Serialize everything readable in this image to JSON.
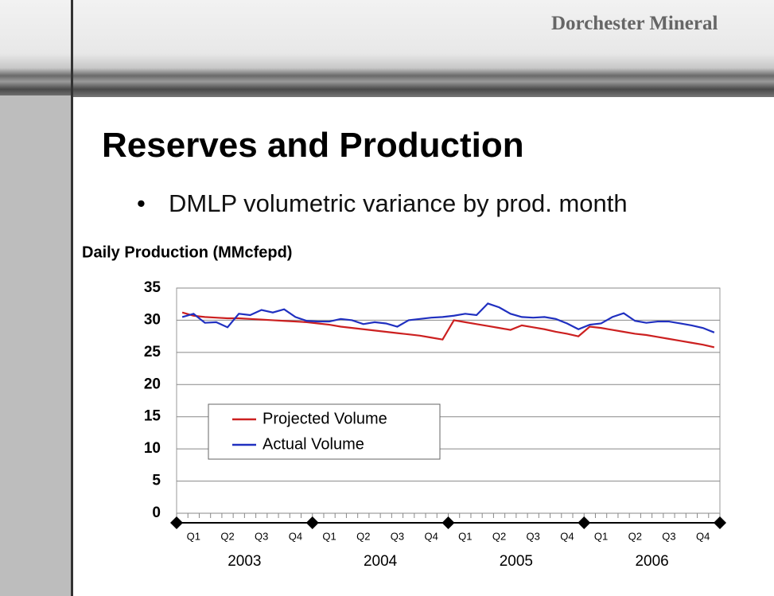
{
  "header": {
    "brand": "Dorchester Mineral"
  },
  "title": "Reserves and Production",
  "bullet": "DMLP volumetric variance by prod. month",
  "chart_data": {
    "type": "line",
    "title": "Daily Production (MMcfepd)",
    "categories": [
      null,
      "Q1",
      null,
      null,
      "Q2",
      null,
      null,
      "Q3",
      null,
      null,
      "Q4",
      null,
      null,
      "Q1",
      null,
      null,
      "Q2",
      null,
      null,
      "Q3",
      null,
      null,
      "Q4",
      null,
      null,
      "Q1",
      null,
      null,
      "Q2",
      null,
      null,
      "Q3",
      null,
      null,
      "Q4",
      null,
      null,
      "Q1",
      null,
      null,
      "Q2",
      null,
      null,
      "Q3",
      null,
      null,
      "Q4",
      null
    ],
    "year_labels": [
      "2003",
      "2004",
      "2005",
      "2006"
    ],
    "series": [
      {
        "name": "Projected Volume",
        "color": "#cc2020",
        "values": [
          31.2,
          30.7,
          30.5,
          30.4,
          30.3,
          30.3,
          30.2,
          30.1,
          30.0,
          29.9,
          29.8,
          29.7,
          29.5,
          29.3,
          29.0,
          28.8,
          28.6,
          28.4,
          28.2,
          28.0,
          27.8,
          27.6,
          27.3,
          27.0,
          30.0,
          29.7,
          29.4,
          29.1,
          28.8,
          28.5,
          29.2,
          28.9,
          28.6,
          28.2,
          27.9,
          27.5,
          29.0,
          28.8,
          28.5,
          28.2,
          27.9,
          27.7,
          27.4,
          27.1,
          26.8,
          26.5,
          26.2,
          25.8
        ]
      },
      {
        "name": "Actual Volume",
        "color": "#2030c0",
        "values": [
          30.5,
          31.0,
          29.6,
          29.7,
          28.9,
          31.0,
          30.8,
          31.6,
          31.2,
          31.7,
          30.5,
          29.9,
          29.8,
          29.8,
          30.2,
          30.0,
          29.4,
          29.7,
          29.5,
          29.0,
          30.0,
          30.2,
          30.4,
          30.5,
          30.7,
          31.0,
          30.8,
          32.6,
          32.0,
          31.0,
          30.5,
          30.4,
          30.5,
          30.2,
          29.5,
          28.6,
          29.3,
          29.5,
          30.5,
          31.1,
          29.9,
          29.6,
          29.8,
          29.8,
          29.5,
          29.2,
          28.8,
          28.1
        ]
      }
    ],
    "ylim": [
      0,
      35
    ],
    "yticks": [
      0,
      5,
      10,
      15,
      20,
      25,
      30,
      35
    ],
    "grid": true
  }
}
